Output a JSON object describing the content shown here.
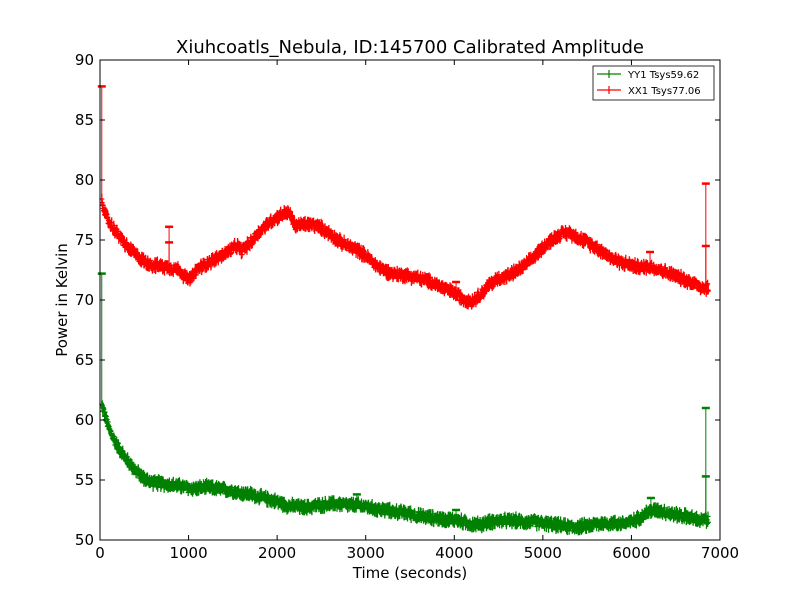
{
  "chart_data": {
    "type": "line",
    "title": "Xiuhcoatls_Nebula, ID:145700 Calibrated Amplitude",
    "xlabel": "Time (seconds)",
    "ylabel": "Power in Kelvin",
    "xlim": [
      0,
      7000
    ],
    "ylim": [
      50,
      90
    ],
    "xticks": [
      0,
      1000,
      2000,
      3000,
      4000,
      5000,
      6000,
      7000
    ],
    "yticks": [
      50,
      55,
      60,
      65,
      70,
      75,
      80,
      85,
      90
    ],
    "grid": false,
    "legend_position": "top-right",
    "series": [
      {
        "name": "YY1 Tsys59.62",
        "color": "#008000",
        "noise": 0.35,
        "x": [
          20,
          40,
          60,
          80,
          100,
          150,
          200,
          300,
          400,
          500,
          600,
          700,
          800,
          900,
          1000,
          1100,
          1200,
          1300,
          1400,
          1500,
          1600,
          1700,
          1800,
          1900,
          2000,
          2100,
          2200,
          2300,
          2400,
          2500,
          2600,
          2700,
          2800,
          2900,
          3000,
          3100,
          3200,
          3300,
          3400,
          3500,
          3600,
          3700,
          3800,
          3900,
          4000,
          4100,
          4200,
          4300,
          4400,
          4500,
          4600,
          4700,
          4800,
          4900,
          5000,
          5100,
          5200,
          5300,
          5400,
          5500,
          5600,
          5700,
          5800,
          5900,
          6000,
          6100,
          6200,
          6300,
          6400,
          6500,
          6600,
          6700,
          6780,
          6830,
          6870
        ],
        "values": [
          61.2,
          60.8,
          60.3,
          59.8,
          59.3,
          58.5,
          57.8,
          56.7,
          55.8,
          55.1,
          54.8,
          54.7,
          54.6,
          54.5,
          54.3,
          54.3,
          54.4,
          54.3,
          54.2,
          54.1,
          53.9,
          53.8,
          53.6,
          53.4,
          53.2,
          52.9,
          52.8,
          52.7,
          52.8,
          52.9,
          53.0,
          53.0,
          52.9,
          52.9,
          52.8,
          52.6,
          52.5,
          52.4,
          52.3,
          52.2,
          52.0,
          51.9,
          51.8,
          51.7,
          51.7,
          51.5,
          51.3,
          51.3,
          51.5,
          51.6,
          51.6,
          51.6,
          51.5,
          51.5,
          51.4,
          51.3,
          51.2,
          51.1,
          51.1,
          51.2,
          51.3,
          51.4,
          51.4,
          51.4,
          51.5,
          51.9,
          52.4,
          52.5,
          52.3,
          52.1,
          52.0,
          51.8,
          51.6,
          51.7,
          51.6
        ]
      },
      {
        "name": "XX1 Tsys77.06",
        "color": "#ff0000",
        "noise": 0.35,
        "x": [
          20,
          40,
          60,
          80,
          100,
          150,
          200,
          300,
          400,
          500,
          600,
          700,
          800,
          900,
          950,
          1000,
          1050,
          1100,
          1200,
          1300,
          1400,
          1500,
          1550,
          1600,
          1700,
          1800,
          1900,
          2000,
          2100,
          2150,
          2200,
          2300,
          2400,
          2500,
          2600,
          2700,
          2800,
          2900,
          3000,
          3100,
          3200,
          3300,
          3400,
          3500,
          3600,
          3700,
          3800,
          3900,
          4000,
          4100,
          4200,
          4300,
          4400,
          4500,
          4600,
          4700,
          4800,
          4900,
          5000,
          5100,
          5200,
          5300,
          5400,
          5500,
          5600,
          5700,
          5800,
          5900,
          6000,
          6100,
          6200,
          6300,
          6400,
          6500,
          6600,
          6700,
          6780,
          6830,
          6870
        ],
        "values": [
          78.2,
          77.8,
          77.2,
          76.8,
          76.5,
          76.0,
          75.5,
          74.5,
          73.8,
          73.2,
          72.9,
          72.8,
          72.7,
          72.5,
          72.0,
          71.7,
          72.0,
          72.6,
          73.0,
          73.4,
          73.8,
          74.3,
          74.5,
          74.1,
          74.8,
          75.7,
          76.4,
          76.9,
          77.3,
          77.1,
          76.2,
          76.3,
          76.3,
          76.0,
          75.5,
          74.9,
          74.5,
          74.2,
          73.7,
          73.0,
          72.5,
          72.2,
          72.1,
          72.0,
          71.8,
          71.6,
          71.3,
          70.9,
          70.6,
          70.1,
          69.9,
          70.5,
          71.3,
          71.8,
          72.0,
          72.4,
          72.9,
          73.6,
          74.4,
          75.0,
          75.5,
          75.6,
          75.2,
          74.8,
          74.4,
          73.9,
          73.4,
          73.1,
          72.9,
          72.7,
          72.8,
          72.6,
          72.3,
          72.0,
          71.7,
          71.4,
          71.1,
          71.0,
          71.0
        ]
      }
    ],
    "outliers": [
      {
        "series": "XX1 Tsys77.06",
        "x": 20,
        "y": 87.8
      },
      {
        "series": "XX1 Tsys77.06",
        "x": 780,
        "y": 76.1
      },
      {
        "series": "XX1 Tsys77.06",
        "x": 780,
        "y": 74.8
      },
      {
        "series": "XX1 Tsys77.06",
        "x": 6210,
        "y": 74.0
      },
      {
        "series": "XX1 Tsys77.06",
        "x": 6840,
        "y": 79.7
      },
      {
        "series": "XX1 Tsys77.06",
        "x": 6840,
        "y": 74.5
      },
      {
        "series": "XX1 Tsys77.06",
        "x": 4020,
        "y": 71.5
      },
      {
        "series": "YY1 Tsys59.62",
        "x": 20,
        "y": 72.2
      },
      {
        "series": "YY1 Tsys59.62",
        "x": 6840,
        "y": 61.0
      },
      {
        "series": "YY1 Tsys59.62",
        "x": 6840,
        "y": 55.3
      },
      {
        "series": "YY1 Tsys59.62",
        "x": 2900,
        "y": 53.8
      },
      {
        "series": "YY1 Tsys59.62",
        "x": 4020,
        "y": 52.5
      },
      {
        "series": "YY1 Tsys59.62",
        "x": 6220,
        "y": 53.5
      }
    ]
  }
}
